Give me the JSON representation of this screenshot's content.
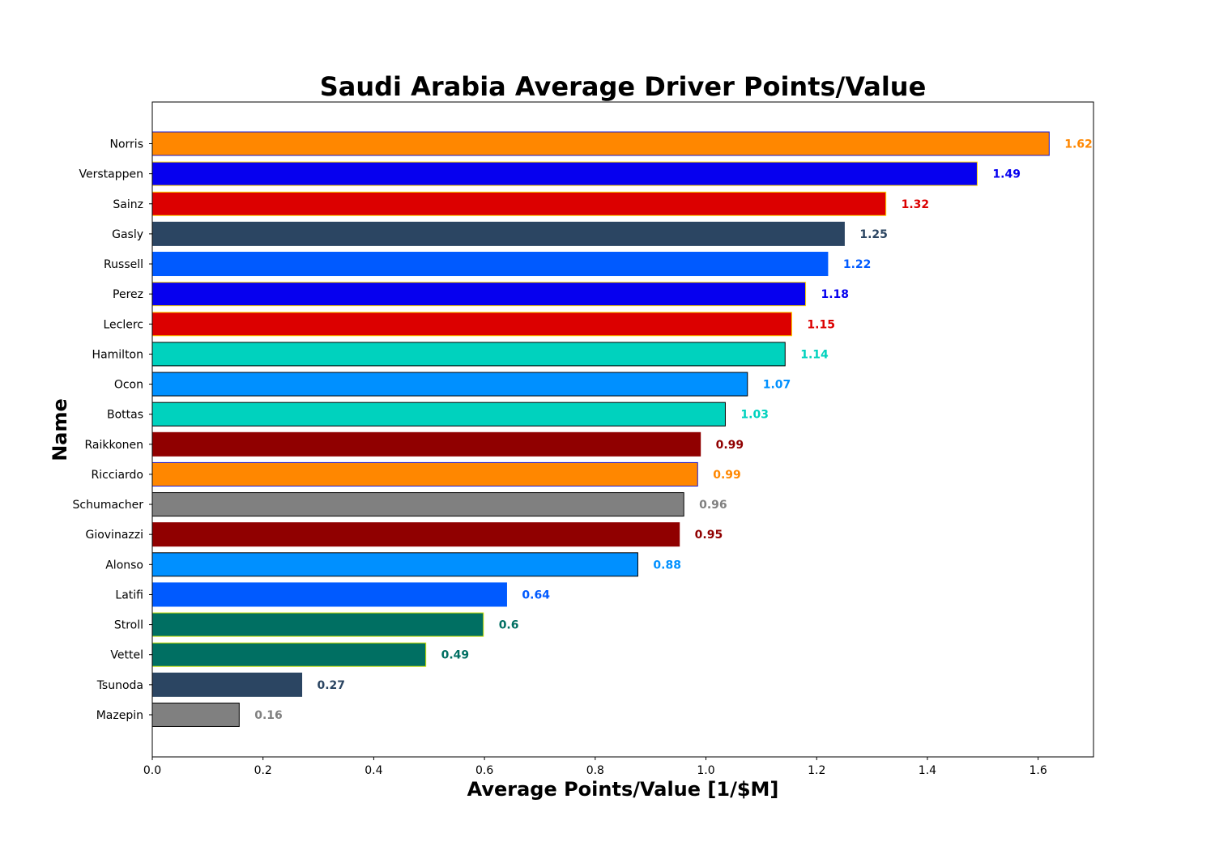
{
  "chart_data": {
    "type": "bar",
    "orientation": "horizontal",
    "title": "Saudi Arabia Average Driver Points/Value",
    "xlabel": "Average Points/Value [1/$M]",
    "ylabel": "Name",
    "xlim": [
      0,
      1.7
    ],
    "xticks": [
      "0.0",
      "0.2",
      "0.4",
      "0.6",
      "0.8",
      "1.0",
      "1.2",
      "1.4",
      "1.6"
    ],
    "grid": false,
    "bars": [
      {
        "name": "Norris",
        "value": 1.62,
        "label": "1.62",
        "color": "#FF8700",
        "edge": "#1a1acc"
      },
      {
        "name": "Verstappen",
        "value": 1.49,
        "label": "1.49",
        "color": "#0600EF",
        "edge": "#FFD700"
      },
      {
        "name": "Sainz",
        "value": 1.325,
        "label": "1.32",
        "color": "#DC0000",
        "edge": "#FFD700"
      },
      {
        "name": "Gasly",
        "value": 1.25,
        "label": "1.25",
        "color": "#2B4562",
        "edge": "#2B4562"
      },
      {
        "name": "Russell",
        "value": 1.22,
        "label": "1.22",
        "color": "#005AFF",
        "edge": "#005AFF"
      },
      {
        "name": "Perez",
        "value": 1.18,
        "label": "1.18",
        "color": "#0600EF",
        "edge": "#FFD700"
      },
      {
        "name": "Leclerc",
        "value": 1.155,
        "label": "1.15",
        "color": "#DC0000",
        "edge": "#FFD700"
      },
      {
        "name": "Hamilton",
        "value": 1.143,
        "label": "1.14",
        "color": "#00D2BE",
        "edge": "#000000"
      },
      {
        "name": "Ocon",
        "value": 1.075,
        "label": "1.07",
        "color": "#0090FF",
        "edge": "#000000"
      },
      {
        "name": "Bottas",
        "value": 1.035,
        "label": "1.03",
        "color": "#00D2BE",
        "edge": "#000000"
      },
      {
        "name": "Raikkonen",
        "value": 0.99,
        "label": "0.99",
        "color": "#900000",
        "edge": "#900000"
      },
      {
        "name": "Ricciardo",
        "value": 0.985,
        "label": "0.99",
        "color": "#FF8700",
        "edge": "#1a1acc"
      },
      {
        "name": "Schumacher",
        "value": 0.96,
        "label": "0.96",
        "color": "#808080",
        "edge": "#000000"
      },
      {
        "name": "Giovinazzi",
        "value": 0.952,
        "label": "0.95",
        "color": "#900000",
        "edge": "#900000"
      },
      {
        "name": "Alonso",
        "value": 0.877,
        "label": "0.88",
        "color": "#0090FF",
        "edge": "#000000"
      },
      {
        "name": "Latifi",
        "value": 0.64,
        "label": "0.64",
        "color": "#005AFF",
        "edge": "#005AFF"
      },
      {
        "name": "Stroll",
        "value": 0.598,
        "label": "0.6",
        "color": "#006F62",
        "edge": "#c8e000"
      },
      {
        "name": "Vettel",
        "value": 0.494,
        "label": "0.49",
        "color": "#006F62",
        "edge": "#c8e000"
      },
      {
        "name": "Tsunoda",
        "value": 0.27,
        "label": "0.27",
        "color": "#2B4562",
        "edge": "#2B4562"
      },
      {
        "name": "Mazepin",
        "value": 0.157,
        "label": "0.16",
        "color": "#808080",
        "edge": "#000000"
      }
    ]
  }
}
